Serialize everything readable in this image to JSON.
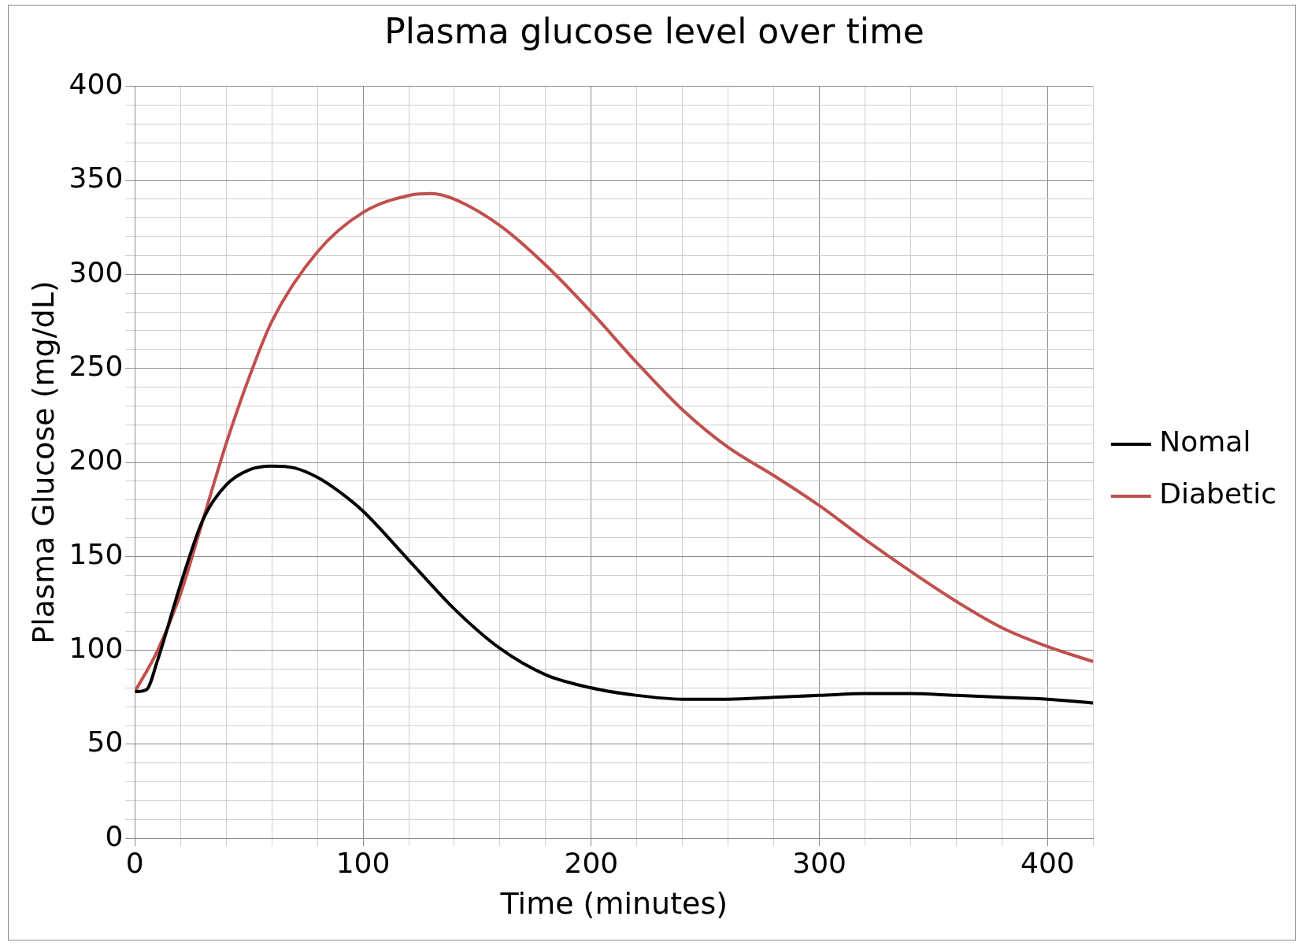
{
  "chart_data": {
    "type": "line",
    "title": "Plasma glucose level over time",
    "xlabel": "Time (minutes)",
    "ylabel": "Plasma Glucose (mg/dL)",
    "xlim": [
      0,
      420
    ],
    "ylim": [
      0,
      400
    ],
    "xticks": [
      0,
      {
        "value": 20,
        "label": null
      },
      {
        "value": 40,
        "label": null
      },
      {
        "value": 60,
        "label": null
      },
      {
        "value": 80,
        "label": null
      },
      100,
      {
        "value": 120,
        "label": null
      },
      {
        "value": 140,
        "label": null
      },
      {
        "value": 160,
        "label": null
      },
      {
        "value": 180,
        "label": null
      },
      200,
      {
        "value": 220,
        "label": null
      },
      {
        "value": 240,
        "label": null
      },
      {
        "value": 260,
        "label": null
      },
      {
        "value": 280,
        "label": null
      },
      300,
      {
        "value": 320,
        "label": null
      },
      {
        "value": 340,
        "label": null
      },
      {
        "value": 360,
        "label": null
      },
      {
        "value": 380,
        "label": null
      },
      400,
      {
        "value": 420,
        "label": null
      }
    ],
    "yticks": [
      0,
      {
        "value": 10,
        "label": null
      },
      {
        "value": 20,
        "label": null
      },
      {
        "value": 30,
        "label": null
      },
      {
        "value": 40,
        "label": null
      },
      50,
      {
        "value": 60,
        "label": null
      },
      {
        "value": 70,
        "label": null
      },
      {
        "value": 80,
        "label": null
      },
      {
        "value": 90,
        "label": null
      },
      100,
      {
        "value": 110,
        "label": null
      },
      {
        "value": 120,
        "label": null
      },
      {
        "value": 130,
        "label": null
      },
      {
        "value": 140,
        "label": null
      },
      150,
      {
        "value": 160,
        "label": null
      },
      {
        "value": 170,
        "label": null
      },
      {
        "value": 180,
        "label": null
      },
      {
        "value": 190,
        "label": null
      },
      200,
      {
        "value": 210,
        "label": null
      },
      {
        "value": 220,
        "label": null
      },
      {
        "value": 230,
        "label": null
      },
      {
        "value": 240,
        "label": null
      },
      250,
      {
        "value": 260,
        "label": null
      },
      {
        "value": 270,
        "label": null
      },
      {
        "value": 280,
        "label": null
      },
      {
        "value": 290,
        "label": null
      },
      300,
      {
        "value": 310,
        "label": null
      },
      {
        "value": 320,
        "label": null
      },
      {
        "value": 330,
        "label": null
      },
      {
        "value": 340,
        "label": null
      },
      350,
      {
        "value": 360,
        "label": null
      },
      {
        "value": 370,
        "label": null
      },
      {
        "value": 380,
        "label": null
      },
      {
        "value": 390,
        "label": null
      },
      400
    ],
    "grid": true,
    "legend": "right",
    "marker": "none",
    "line_style": "solid",
    "series": [
      {
        "name": "Nomal",
        "color": "#000000",
        "x": [
          0,
          5,
          10,
          20,
          30,
          40,
          50,
          60,
          70,
          80,
          90,
          100,
          120,
          140,
          160,
          180,
          200,
          220,
          240,
          260,
          280,
          300,
          320,
          340,
          360,
          380,
          400,
          420
        ],
        "values": [
          78,
          79,
          95,
          135,
          170,
          188,
          196,
          198,
          197,
          192,
          184,
          174,
          148,
          122,
          101,
          87,
          80,
          76,
          74,
          74,
          75,
          76,
          77,
          77,
          76,
          75,
          74,
          72
        ]
      },
      {
        "name": "Diabetic",
        "color": "#c0504d",
        "x": [
          0,
          10,
          20,
          30,
          40,
          50,
          60,
          80,
          100,
          120,
          130,
          140,
          160,
          180,
          200,
          220,
          240,
          260,
          280,
          300,
          320,
          340,
          360,
          380,
          400,
          420
        ],
        "values": [
          78,
          100,
          130,
          170,
          210,
          245,
          275,
          312,
          333,
          342,
          343,
          340,
          326,
          305,
          280,
          253,
          228,
          208,
          193,
          177,
          159,
          142,
          126,
          112,
          102,
          94
        ]
      }
    ]
  }
}
